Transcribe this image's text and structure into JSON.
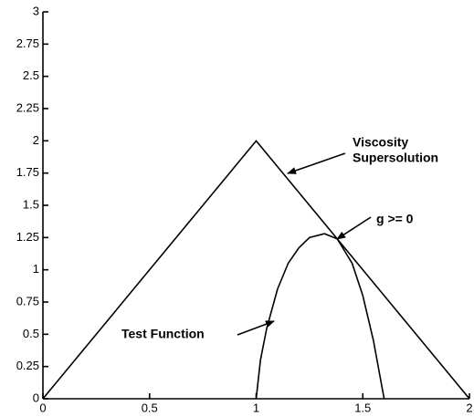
{
  "chart_data": {
    "type": "line",
    "series": [
      {
        "color": "#000000",
        "x": [
          0,
          1,
          2
        ],
        "values": [
          0,
          2,
          0
        ]
      },
      {
        "color": "#000000",
        "x": [
          1,
          1.02,
          1.05,
          1.1,
          1.15,
          1.2,
          1.25,
          1.32,
          1.38,
          1.45,
          1.5,
          1.55,
          1.6
        ],
        "values": [
          0,
          0.3,
          0.55,
          0.85,
          1.05,
          1.17,
          1.25,
          1.28,
          1.24,
          1.05,
          0.8,
          0.45,
          0
        ]
      }
    ],
    "xlim": [
      0,
      2
    ],
    "xticks": [
      0,
      0.5,
      1,
      1.5,
      2
    ],
    "ylim": [
      0,
      3
    ],
    "yticks": [
      0,
      0.25,
      0.5,
      0.75,
      1,
      1.25,
      1.5,
      1.75,
      2,
      2.25,
      2.5,
      2.75,
      3
    ],
    "grid": false,
    "annotations": [
      {
        "lines": [
          "Viscosity",
          "Supersolution"
        ]
      },
      {
        "lines": [
          "g >= 0"
        ]
      },
      {
        "lines": [
          "Test Function"
        ]
      }
    ]
  }
}
